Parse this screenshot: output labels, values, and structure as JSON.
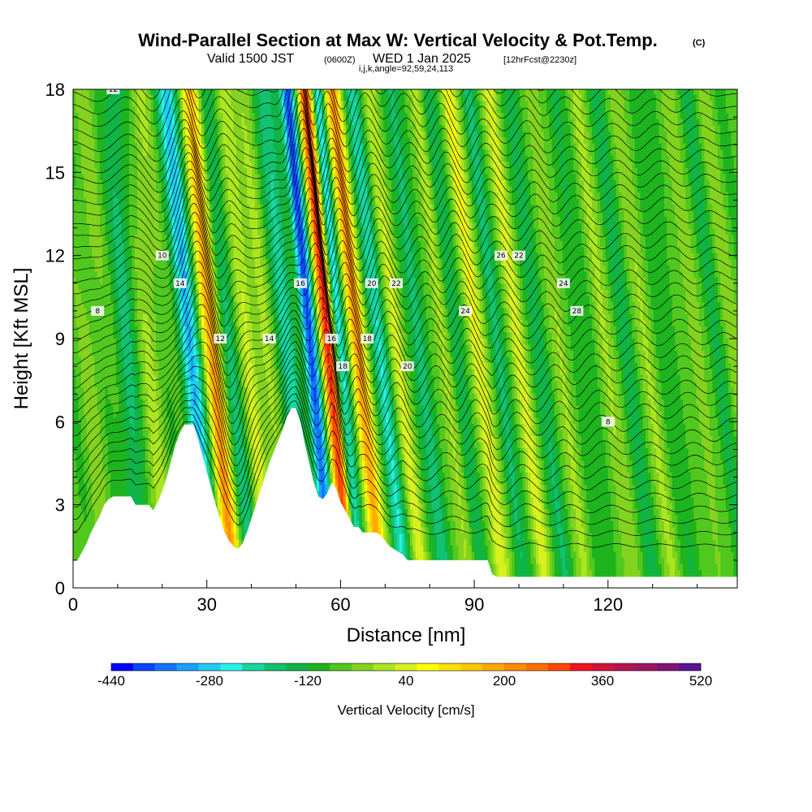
{
  "title": {
    "main": "Wind-Parallel Section at Max W: Vertical Velocity & Pot.Temp.",
    "copyright": "(C)",
    "valid_prefix": "Valid 1500 JST",
    "valid_utc": "(0600Z)",
    "valid_date": "WED 1 Jan 2025",
    "forecast": "[12hrFcst@2230z]",
    "indices": "i,j,k,angle=92,59,24,113"
  },
  "chart_data": {
    "type": "heatmap",
    "xlabel": "Distance [nm]",
    "ylabel": "Height [Kft MSL]",
    "xlim": [
      0,
      149
    ],
    "ylim": [
      0,
      18
    ],
    "x_ticks": [
      0,
      30,
      60,
      90,
      120
    ],
    "x_tick_labels": [
      "0",
      "30",
      "60",
      "90",
      "120"
    ],
    "y_ticks": [
      0,
      3,
      6,
      9,
      12,
      15,
      18
    ],
    "y_tick_labels": [
      "0",
      "3",
      "6",
      "9",
      "12",
      "15",
      "18"
    ],
    "colorbar": {
      "title": "Vertical Velocity [cm/s]",
      "min": -440,
      "max": 520,
      "step": 40,
      "tick_values": [
        -440,
        -280,
        -120,
        40,
        200,
        360,
        520
      ],
      "tick_labels": [
        "-440",
        "-280",
        "-120",
        "40",
        "200",
        "360",
        "520"
      ],
      "colors": [
        "#0000ff",
        "#0a46ff",
        "#1473ff",
        "#1aa0ff",
        "#1ecdf0",
        "#28f0e6",
        "#16d7a0",
        "#12c270",
        "#10b446",
        "#1eb41e",
        "#50c81e",
        "#82d21e",
        "#aae61e",
        "#d8f01e",
        "#ffff00",
        "#ffe000",
        "#ffc800",
        "#ffaa00",
        "#ff8c00",
        "#ff6e00",
        "#ff4600",
        "#f0141e",
        "#d2143c",
        "#b41450",
        "#a01464",
        "#821478",
        "#5a1496"
      ]
    },
    "terrain_profile": {
      "x": [
        0,
        1,
        2,
        3,
        4,
        5,
        6,
        7,
        8,
        9,
        10,
        11,
        12,
        13,
        14,
        15,
        16,
        17,
        18,
        19,
        20,
        21,
        22,
        23,
        24,
        25,
        26,
        27,
        28,
        29,
        30,
        31,
        32,
        33,
        34,
        35,
        36,
        37,
        38,
        39,
        40,
        41,
        42,
        43,
        44,
        45,
        46,
        47,
        48,
        49,
        50,
        51,
        52,
        53,
        54,
        55,
        56,
        57,
        58,
        59,
        60,
        61,
        62,
        63,
        64,
        65,
        66,
        67,
        68,
        69,
        70,
        71,
        72,
        73,
        74,
        75,
        76,
        77,
        78,
        79,
        80,
        81,
        82,
        83,
        84,
        85,
        86,
        87,
        88,
        89,
        90,
        91,
        92,
        93,
        94,
        95,
        96,
        97,
        98,
        99,
        100,
        149
      ],
      "h": [
        1.0,
        1.0,
        1.3,
        1.6,
        2.0,
        2.3,
        2.6,
        3.0,
        3.2,
        3.3,
        3.3,
        3.3,
        3.3,
        3.3,
        3.0,
        3.0,
        3.0,
        3.0,
        2.8,
        3.1,
        3.5,
        4.0,
        4.6,
        5.2,
        5.6,
        5.9,
        5.9,
        5.9,
        5.4,
        4.8,
        4.2,
        3.6,
        3.0,
        2.5,
        2.0,
        1.7,
        1.5,
        1.4,
        1.6,
        2.0,
        2.5,
        3.0,
        3.5,
        4.0,
        4.5,
        4.9,
        5.3,
        5.7,
        6.2,
        6.5,
        6.5,
        6.0,
        5.2,
        4.5,
        3.8,
        3.3,
        3.2,
        3.4,
        3.8,
        3.6,
        3.1,
        2.8,
        2.5,
        2.2,
        2.2,
        2.0,
        2.0,
        2.0,
        2.0,
        1.9,
        1.7,
        1.5,
        1.4,
        1.3,
        1.2,
        1.0,
        1.0,
        1.0,
        1.0,
        1.0,
        1.0,
        1.0,
        1.0,
        1.0,
        1.0,
        1.0,
        1.0,
        1.0,
        1.0,
        1.0,
        1.0,
        1.0,
        1.0,
        1.0,
        0.5,
        0.4,
        0.4,
        0.4,
        0.4,
        0.4,
        0.4,
        0.4
      ]
    },
    "theta_contour_labels": [
      "8",
      "10",
      "12",
      "14",
      "16",
      "18",
      "20",
      "22",
      "24",
      "26",
      "28"
    ]
  }
}
